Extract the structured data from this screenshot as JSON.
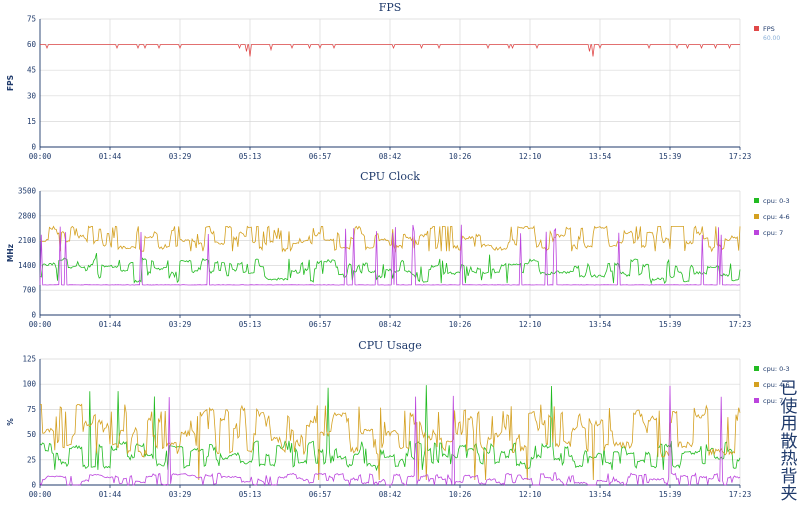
{
  "time_ticks": [
    "00:00",
    "01:44",
    "03:29",
    "05:13",
    "06:57",
    "08:42",
    "10:26",
    "12:10",
    "13:54",
    "15:39",
    "17:23"
  ],
  "palette": {
    "red": "#e04848",
    "green": "#22bb22",
    "gold": "#d4a020",
    "purple": "#bb44dd",
    "axis": "#1f3a6b",
    "grid": "#d8d8d8"
  },
  "watermark": "已使用散热背夹",
  "chart_data": [
    {
      "type": "line",
      "title": "FPS",
      "ylabel": "FPS",
      "ylim": [
        0,
        75
      ],
      "yticks": [
        "0",
        "15",
        "30",
        "45",
        "60",
        "75"
      ],
      "legend": "right",
      "series": [
        {
          "name": "FPS",
          "color": "#e04848",
          "legend_value": "60.00",
          "baseline": 60,
          "dips": [
            {
              "x": 0.01,
              "y": 58
            },
            {
              "x": 0.11,
              "y": 58
            },
            {
              "x": 0.14,
              "y": 58
            },
            {
              "x": 0.15,
              "y": 58
            },
            {
              "x": 0.17,
              "y": 58
            },
            {
              "x": 0.2,
              "y": 58
            },
            {
              "x": 0.285,
              "y": 58
            },
            {
              "x": 0.295,
              "y": 56
            },
            {
              "x": 0.3,
              "y": 53
            },
            {
              "x": 0.33,
              "y": 57
            },
            {
              "x": 0.36,
              "y": 58
            },
            {
              "x": 0.385,
              "y": 58
            },
            {
              "x": 0.4,
              "y": 58
            },
            {
              "x": 0.42,
              "y": 58
            },
            {
              "x": 0.505,
              "y": 58
            },
            {
              "x": 0.545,
              "y": 58
            },
            {
              "x": 0.57,
              "y": 58
            },
            {
              "x": 0.64,
              "y": 58
            },
            {
              "x": 0.67,
              "y": 58
            },
            {
              "x": 0.675,
              "y": 58
            },
            {
              "x": 0.71,
              "y": 58
            },
            {
              "x": 0.785,
              "y": 56
            },
            {
              "x": 0.79,
              "y": 53
            },
            {
              "x": 0.8,
              "y": 58
            },
            {
              "x": 0.87,
              "y": 58
            },
            {
              "x": 0.91,
              "y": 58
            },
            {
              "x": 0.925,
              "y": 58
            },
            {
              "x": 0.945,
              "y": 58
            },
            {
              "x": 0.965,
              "y": 58
            },
            {
              "x": 0.985,
              "y": 58
            }
          ]
        }
      ]
    },
    {
      "type": "line",
      "title": "CPU Clock",
      "ylabel": "MHz",
      "ylim": [
        0,
        3500
      ],
      "yticks": [
        "0",
        "700",
        "1400",
        "2100",
        "2800",
        "3500"
      ],
      "legend": "right",
      "series": [
        {
          "name": "cpu: 0-3",
          "color": "#22bb22",
          "mean": 1250,
          "jitter": 200,
          "min": 900,
          "max": 1750,
          "seed": 11
        },
        {
          "name": "cpu: 4-6",
          "color": "#d4a020",
          "mean": 2200,
          "jitter": 230,
          "min": 1800,
          "max": 2500,
          "seed": 23
        },
        {
          "name": "cpu: 7",
          "color": "#bb44dd",
          "mean": 850,
          "spikes": 2400,
          "seed": 37
        }
      ]
    },
    {
      "type": "line",
      "title": "CPU Usage",
      "ylabel": "%",
      "ylim": [
        0,
        125
      ],
      "yticks": [
        "0",
        "25",
        "50",
        "75",
        "100",
        "125"
      ],
      "legend": "right",
      "series": [
        {
          "name": "cpu: 0-3",
          "color": "#22bb22",
          "mean": 30,
          "jitter": 8,
          "min": 15,
          "max": 100,
          "seed": 51
        },
        {
          "name": "cpu: 4-6",
          "color": "#d4a020",
          "mean": 55,
          "jitter": 16,
          "min": 5,
          "max": 80,
          "seed": 63
        },
        {
          "name": "cpu: 7",
          "color": "#bb44dd",
          "mean": 5,
          "jitter": 4,
          "min": 0,
          "max": 100,
          "seed": 77
        }
      ]
    }
  ]
}
